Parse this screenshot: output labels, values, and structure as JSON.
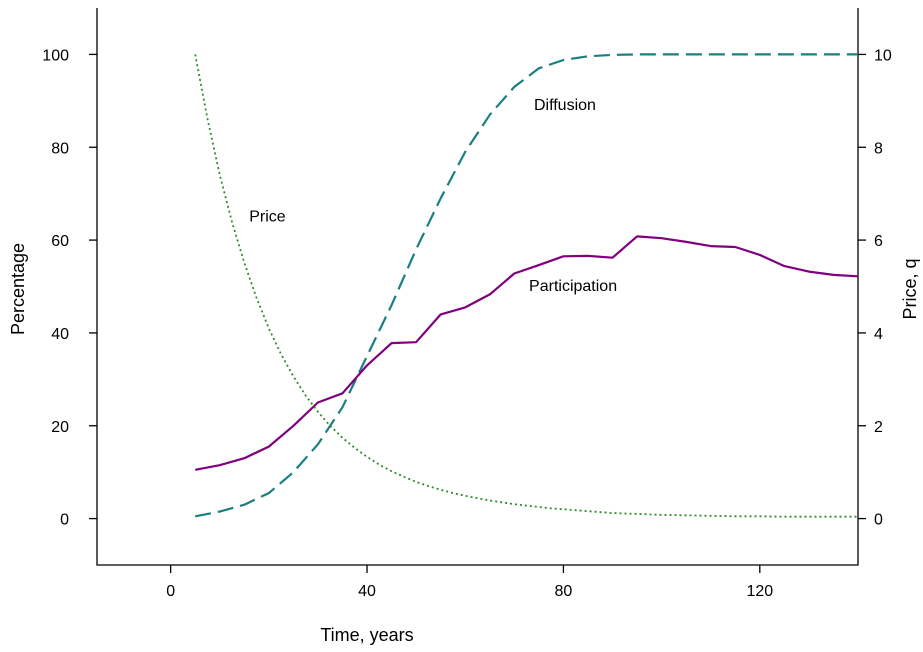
{
  "chart_data": {
    "type": "line",
    "title": "",
    "xlabel": "Time, years",
    "ylabel": "Percentage",
    "y2label": "Price, q",
    "xlim": [
      -15,
      140
    ],
    "ylim": [
      -10,
      110
    ],
    "y2lim": [
      -1,
      11
    ],
    "xticks": [
      0,
      40,
      80,
      120
    ],
    "yticks": [
      0,
      20,
      40,
      60,
      80,
      100
    ],
    "y2ticks": [
      0,
      2,
      4,
      6,
      8,
      10
    ],
    "grid": false,
    "annotations": [
      {
        "text": "Diffusion",
        "x": 74,
        "y": 88
      },
      {
        "text": "Price",
        "x": 16,
        "y": 64
      },
      {
        "text": "Participation",
        "x": 73,
        "y": 49
      }
    ],
    "series": [
      {
        "name": "Diffusion",
        "axis": "left",
        "color": "#1a7f80",
        "style": "dashed",
        "x": [
          5,
          10,
          15,
          20,
          25,
          30,
          35,
          40,
          45,
          50,
          55,
          60,
          65,
          70,
          75,
          80,
          85,
          90,
          95,
          100,
          105,
          110,
          115,
          120,
          125,
          130,
          135,
          140
        ],
        "values": [
          0.5,
          1.5,
          3,
          5.5,
          10,
          16,
          24,
          35,
          46,
          58,
          69,
          79,
          87,
          93,
          97,
          98.8,
          99.6,
          99.9,
          100,
          100,
          100,
          100,
          100,
          100,
          100,
          100,
          100,
          100
        ]
      },
      {
        "name": "Participation",
        "axis": "left",
        "color": "#800080",
        "style": "solid",
        "x": [
          5,
          10,
          15,
          20,
          25,
          30,
          35,
          40,
          45,
          50,
          55,
          60,
          65,
          70,
          75,
          80,
          85,
          90,
          95,
          100,
          105,
          110,
          115,
          120,
          125,
          130,
          135,
          140
        ],
        "values": [
          10.5,
          11.5,
          13,
          15.5,
          20,
          25,
          27,
          33,
          37.8,
          38,
          44,
          45.5,
          48.3,
          52.8,
          54.6,
          56.5,
          56.6,
          56.2,
          60.8,
          60.4,
          59.6,
          58.7,
          58.5,
          56.8,
          54.4,
          53.2,
          52.5,
          52.2
        ]
      },
      {
        "name": "Price",
        "axis": "right",
        "color": "#2e8b2e",
        "style": "dotted",
        "x": [
          5,
          7.5,
          10,
          12.5,
          15,
          17.5,
          20,
          22.5,
          25,
          27.5,
          30,
          32.5,
          35,
          37.5,
          40,
          42.5,
          45,
          47.5,
          50,
          52.5,
          55,
          57.5,
          60,
          62.5,
          65,
          67.5,
          70,
          72.5,
          75,
          77.5,
          80,
          82.5,
          85,
          87.5,
          90,
          92.5,
          95,
          100,
          105,
          110,
          115,
          120,
          125,
          130,
          135,
          140
        ],
        "values": [
          10,
          8.61,
          7.41,
          6.39,
          5.51,
          4.75,
          4.1,
          3.54,
          3.06,
          2.65,
          2.3,
          2.0,
          1.74,
          1.52,
          1.33,
          1.16,
          1.02,
          0.9,
          0.79,
          0.7,
          0.62,
          0.55,
          0.49,
          0.44,
          0.39,
          0.35,
          0.31,
          0.28,
          0.25,
          0.22,
          0.2,
          0.18,
          0.16,
          0.14,
          0.12,
          0.11,
          0.1,
          0.08,
          0.07,
          0.06,
          0.05,
          0.05,
          0.04,
          0.04,
          0.04,
          0.04
        ]
      }
    ]
  }
}
